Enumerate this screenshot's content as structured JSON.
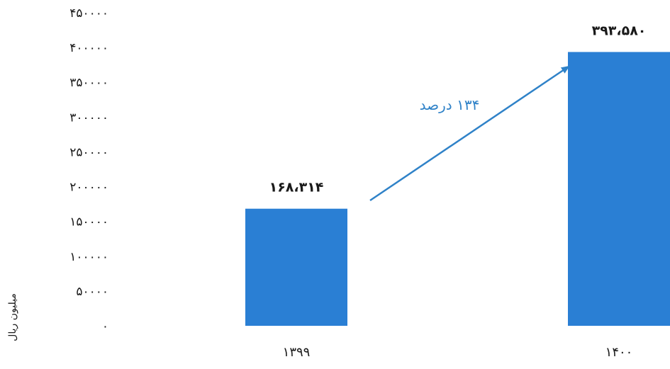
{
  "chart_data": {
    "type": "bar",
    "categories": [
      "۱۳۹۹",
      "۱۴۰۰"
    ],
    "values": [
      168314,
      393580
    ],
    "data_labels": [
      "۱۶۸،۳۱۴",
      "۳۹۳،۵۸۰"
    ],
    "ylim": [
      0,
      450000
    ],
    "yticks": [
      0,
      50000,
      100000,
      150000,
      200000,
      250000,
      300000,
      350000,
      400000,
      450000
    ],
    "ytick_labels": [
      "۰",
      "۵۰۰۰۰",
      "۱۰۰۰۰۰",
      "۱۵۰۰۰۰",
      "۲۰۰۰۰۰",
      "۲۵۰۰۰۰",
      "۳۰۰۰۰۰",
      "۳۵۰۰۰۰",
      "۴۰۰۰۰۰",
      "۴۵۰۰۰۰"
    ],
    "ylabel": "میلیون ریال",
    "xlabel": "",
    "title": "",
    "grid": false,
    "annotation": {
      "text": "۱۳۴ درصد",
      "type": "arrow",
      "from_category": "۱۳۹۹",
      "to_category": "۱۴۰۰"
    },
    "colors": {
      "bar": "#2a7fd4",
      "arrow": "#2f82c8",
      "annotation_text": "#2f82c8",
      "axis_text": "#1a1a1a"
    }
  }
}
